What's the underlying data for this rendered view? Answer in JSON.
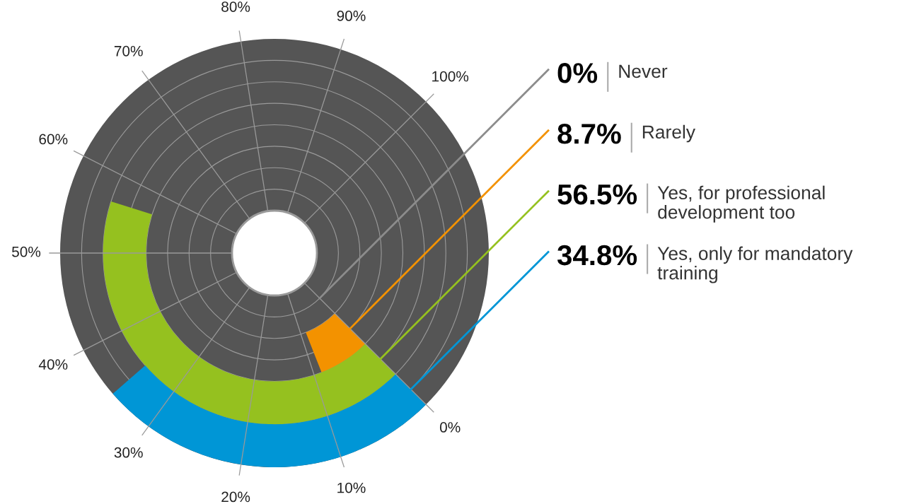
{
  "chart_data": {
    "type": "other",
    "categories": [
      "Never",
      "Rarely",
      "Yes, for professional\ndevelopment too",
      "Yes, only for mandatory\ntraining"
    ],
    "values": [
      0,
      8.7,
      56.5,
      34.8
    ],
    "value_labels": [
      "0%",
      "8.7%",
      "56.5%",
      "34.8%"
    ],
    "colors": [
      "#8c8c8c",
      "#f39200",
      "#95c11f",
      "#0096d6"
    ],
    "annotations": [
      "0%",
      "10%",
      "20%",
      "30%",
      "40%",
      "50%",
      "60%",
      "70%",
      "80%",
      "90%",
      "100%"
    ]
  }
}
